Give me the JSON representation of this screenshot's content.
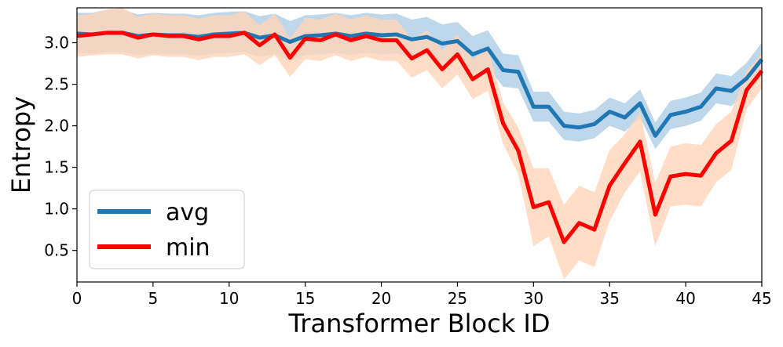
{
  "chart_data": {
    "type": "line",
    "xlabel": "Transformer Block ID",
    "ylabel": "Entropy",
    "xlim": [
      0,
      45
    ],
    "ylim": [
      0.12,
      3.42
    ],
    "xticks": [
      0,
      5,
      10,
      15,
      20,
      25,
      30,
      35,
      40,
      45
    ],
    "yticks": [
      0.5,
      1.0,
      1.5,
      2.0,
      2.5,
      3.0
    ],
    "grid": false,
    "legend_position": "lower-left",
    "x": [
      0,
      1,
      2,
      3,
      4,
      5,
      6,
      7,
      8,
      9,
      10,
      11,
      12,
      13,
      14,
      15,
      16,
      17,
      18,
      19,
      20,
      21,
      22,
      23,
      24,
      25,
      26,
      27,
      28,
      29,
      30,
      31,
      32,
      33,
      34,
      35,
      36,
      37,
      38,
      39,
      40,
      41,
      42,
      43,
      44,
      45
    ],
    "series": [
      {
        "name": "avg",
        "color": "#1f77b4",
        "band_color": "#aecde6",
        "values": [
          3.11,
          3.1,
          3.12,
          3.12,
          3.08,
          3.1,
          3.09,
          3.09,
          3.07,
          3.1,
          3.11,
          3.12,
          3.06,
          3.09,
          3.01,
          3.08,
          3.09,
          3.11,
          3.08,
          3.11,
          3.09,
          3.1,
          3.04,
          3.07,
          2.99,
          3.02,
          2.86,
          2.93,
          2.67,
          2.65,
          2.23,
          2.23,
          2.0,
          1.98,
          2.02,
          2.17,
          2.1,
          2.27,
          1.88,
          2.13,
          2.17,
          2.23,
          2.45,
          2.42,
          2.57,
          2.8
        ],
        "lower": [
          2.88,
          2.87,
          2.89,
          2.89,
          2.85,
          2.87,
          2.86,
          2.86,
          2.84,
          2.87,
          2.88,
          2.89,
          2.83,
          2.86,
          2.78,
          2.85,
          2.86,
          2.88,
          2.85,
          2.88,
          2.86,
          2.87,
          2.81,
          2.84,
          2.76,
          2.79,
          2.63,
          2.7,
          2.47,
          2.45,
          2.05,
          2.05,
          1.83,
          1.81,
          1.85,
          2.0,
          1.93,
          2.1,
          1.72,
          1.96,
          2.0,
          2.06,
          2.27,
          2.24,
          2.38,
          2.61
        ],
        "upper": [
          3.36,
          3.36,
          3.4,
          3.4,
          3.34,
          3.36,
          3.35,
          3.35,
          3.33,
          3.36,
          3.37,
          3.38,
          3.32,
          3.35,
          3.26,
          3.33,
          3.34,
          3.36,
          3.33,
          3.36,
          3.34,
          3.35,
          3.28,
          3.31,
          3.22,
          3.25,
          3.08,
          3.15,
          2.87,
          2.85,
          2.41,
          2.41,
          2.17,
          2.15,
          2.19,
          2.34,
          2.27,
          2.44,
          2.04,
          2.3,
          2.34,
          2.4,
          2.63,
          2.6,
          2.76,
          3.0
        ]
      },
      {
        "name": "min",
        "color": "#ff0000",
        "band_color": "#ffd5b8",
        "values": [
          3.08,
          3.1,
          3.12,
          3.12,
          3.06,
          3.1,
          3.08,
          3.08,
          3.04,
          3.08,
          3.08,
          3.12,
          2.97,
          3.1,
          2.82,
          3.05,
          3.03,
          3.1,
          3.03,
          3.08,
          3.03,
          3.03,
          2.81,
          2.91,
          2.68,
          2.86,
          2.56,
          2.68,
          2.03,
          1.7,
          1.02,
          1.08,
          0.6,
          0.83,
          0.75,
          1.28,
          1.55,
          1.81,
          0.93,
          1.39,
          1.42,
          1.4,
          1.67,
          1.82,
          2.43,
          2.66
        ],
        "lower": [
          2.83,
          2.85,
          2.86,
          2.86,
          2.81,
          2.85,
          2.83,
          2.83,
          2.79,
          2.83,
          2.83,
          2.86,
          2.73,
          2.85,
          2.59,
          2.8,
          2.78,
          2.85,
          2.78,
          2.83,
          2.78,
          2.78,
          2.58,
          2.67,
          2.45,
          2.62,
          2.32,
          2.42,
          1.78,
          1.42,
          0.55,
          0.67,
          0.15,
          0.38,
          0.3,
          0.85,
          1.2,
          1.45,
          0.55,
          1.03,
          1.05,
          1.03,
          1.32,
          1.47,
          2.2,
          2.45
        ],
        "upper": [
          3.33,
          3.35,
          3.4,
          3.42,
          3.31,
          3.35,
          3.33,
          3.33,
          3.29,
          3.33,
          3.33,
          3.38,
          3.21,
          3.35,
          3.05,
          3.3,
          3.28,
          3.35,
          3.28,
          3.33,
          3.28,
          3.28,
          3.04,
          3.15,
          2.91,
          3.1,
          2.8,
          2.94,
          2.28,
          1.98,
          1.49,
          1.49,
          1.05,
          1.28,
          1.2,
          1.71,
          1.9,
          2.17,
          1.31,
          1.75,
          1.79,
          1.77,
          2.02,
          2.17,
          2.66,
          2.87
        ]
      }
    ]
  }
}
